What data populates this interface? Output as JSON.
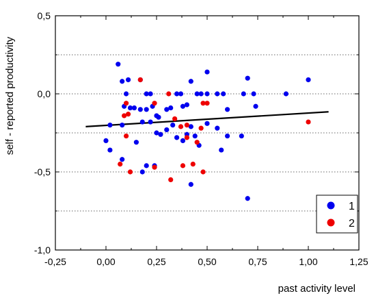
{
  "chart_data": {
    "type": "scatter",
    "title": "",
    "xlabel": "past activity level",
    "ylabel": "self - reported productivity",
    "xlim": [
      -0.25,
      1.25
    ],
    "ylim": [
      -1.0,
      0.5
    ],
    "xticks": [
      "-0,25",
      "0,00",
      "0,25",
      "0,50",
      "0,75",
      "1,00",
      "1,25"
    ],
    "xtick_values": [
      -0.25,
      0,
      0.25,
      0.5,
      0.75,
      1.0,
      1.25
    ],
    "yticks": [
      "0,5",
      "0,0",
      "-0,5",
      "-1,0"
    ],
    "ytick_values": [
      0.5,
      0.0,
      -0.5,
      -1.0
    ],
    "grid": "horizontal dotted",
    "legend_position": "bottom-right",
    "colors": {
      "series1": "#0000ee",
      "series2": "#ee0000",
      "trend": "#000000"
    },
    "series": [
      {
        "name": "1",
        "points": [
          [
            0.06,
            0.19
          ],
          [
            0.08,
            0.08
          ],
          [
            0.1,
            0.0
          ],
          [
            0.11,
            0.09
          ],
          [
            0.17,
            0.09
          ],
          [
            0.2,
            0.0
          ],
          [
            0.22,
            0.0
          ],
          [
            0.09,
            -0.08
          ],
          [
            0.12,
            -0.09
          ],
          [
            0.14,
            -0.09
          ],
          [
            0.17,
            -0.1
          ],
          [
            0.2,
            -0.1
          ],
          [
            0.23,
            -0.08
          ],
          [
            0.25,
            -0.14
          ],
          [
            0.26,
            -0.15
          ],
          [
            0.3,
            -0.1
          ],
          [
            0.32,
            -0.09
          ],
          [
            0.35,
            0.0
          ],
          [
            0.37,
            0.0
          ],
          [
            0.38,
            -0.08
          ],
          [
            0.4,
            -0.07
          ],
          [
            0.42,
            0.08
          ],
          [
            0.45,
            0.0
          ],
          [
            0.47,
            0.0
          ],
          [
            0.5,
            0.14
          ],
          [
            0.5,
            0.0
          ],
          [
            0.55,
            0.0
          ],
          [
            0.58,
            0.0
          ],
          [
            0.6,
            -0.1
          ],
          [
            0.68,
            0.0
          ],
          [
            0.7,
            0.1
          ],
          [
            0.73,
            0.0
          ],
          [
            0.74,
            -0.08
          ],
          [
            0.89,
            0.0
          ],
          [
            1.0,
            0.09
          ],
          [
            0.02,
            -0.2
          ],
          [
            0.08,
            -0.2
          ],
          [
            0.15,
            -0.31
          ],
          [
            0.18,
            -0.18
          ],
          [
            0.22,
            -0.18
          ],
          [
            0.25,
            -0.25
          ],
          [
            0.27,
            -0.26
          ],
          [
            0.3,
            -0.23
          ],
          [
            0.33,
            -0.2
          ],
          [
            0.35,
            -0.28
          ],
          [
            0.38,
            -0.3
          ],
          [
            0.4,
            -0.26
          ],
          [
            0.42,
            -0.21
          ],
          [
            0.44,
            -0.27
          ],
          [
            0.46,
            -0.33
          ],
          [
            0.5,
            -0.19
          ],
          [
            0.55,
            -0.22
          ],
          [
            0.57,
            -0.36
          ],
          [
            0.6,
            -0.27
          ],
          [
            0.67,
            -0.27
          ],
          [
            0.0,
            -0.3
          ],
          [
            0.02,
            -0.36
          ],
          [
            0.08,
            -0.42
          ],
          [
            0.2,
            -0.46
          ],
          [
            0.24,
            -0.46
          ],
          [
            0.18,
            -0.5
          ],
          [
            0.42,
            -0.58
          ],
          [
            0.7,
            -0.67
          ]
        ]
      },
      {
        "name": "2",
        "points": [
          [
            0.17,
            0.09
          ],
          [
            0.31,
            0.0
          ],
          [
            0.48,
            -0.06
          ],
          [
            0.5,
            -0.06
          ],
          [
            0.1,
            -0.06
          ],
          [
            0.11,
            -0.13
          ],
          [
            0.09,
            -0.14
          ],
          [
            0.24,
            -0.06
          ],
          [
            0.34,
            -0.16
          ],
          [
            0.37,
            -0.21
          ],
          [
            0.4,
            -0.2
          ],
          [
            0.47,
            -0.22
          ],
          [
            0.1,
            -0.27
          ],
          [
            0.45,
            -0.31
          ],
          [
            0.4,
            -0.28
          ],
          [
            0.07,
            -0.45
          ],
          [
            0.12,
            -0.5
          ],
          [
            0.24,
            -0.47
          ],
          [
            0.38,
            -0.46
          ],
          [
            0.43,
            -0.45
          ],
          [
            0.48,
            -0.5
          ],
          [
            0.32,
            -0.55
          ],
          [
            1.0,
            -0.18
          ]
        ]
      }
    ],
    "trendline": {
      "x": [
        -0.1,
        1.1
      ],
      "y": [
        -0.21,
        -0.115
      ]
    }
  }
}
